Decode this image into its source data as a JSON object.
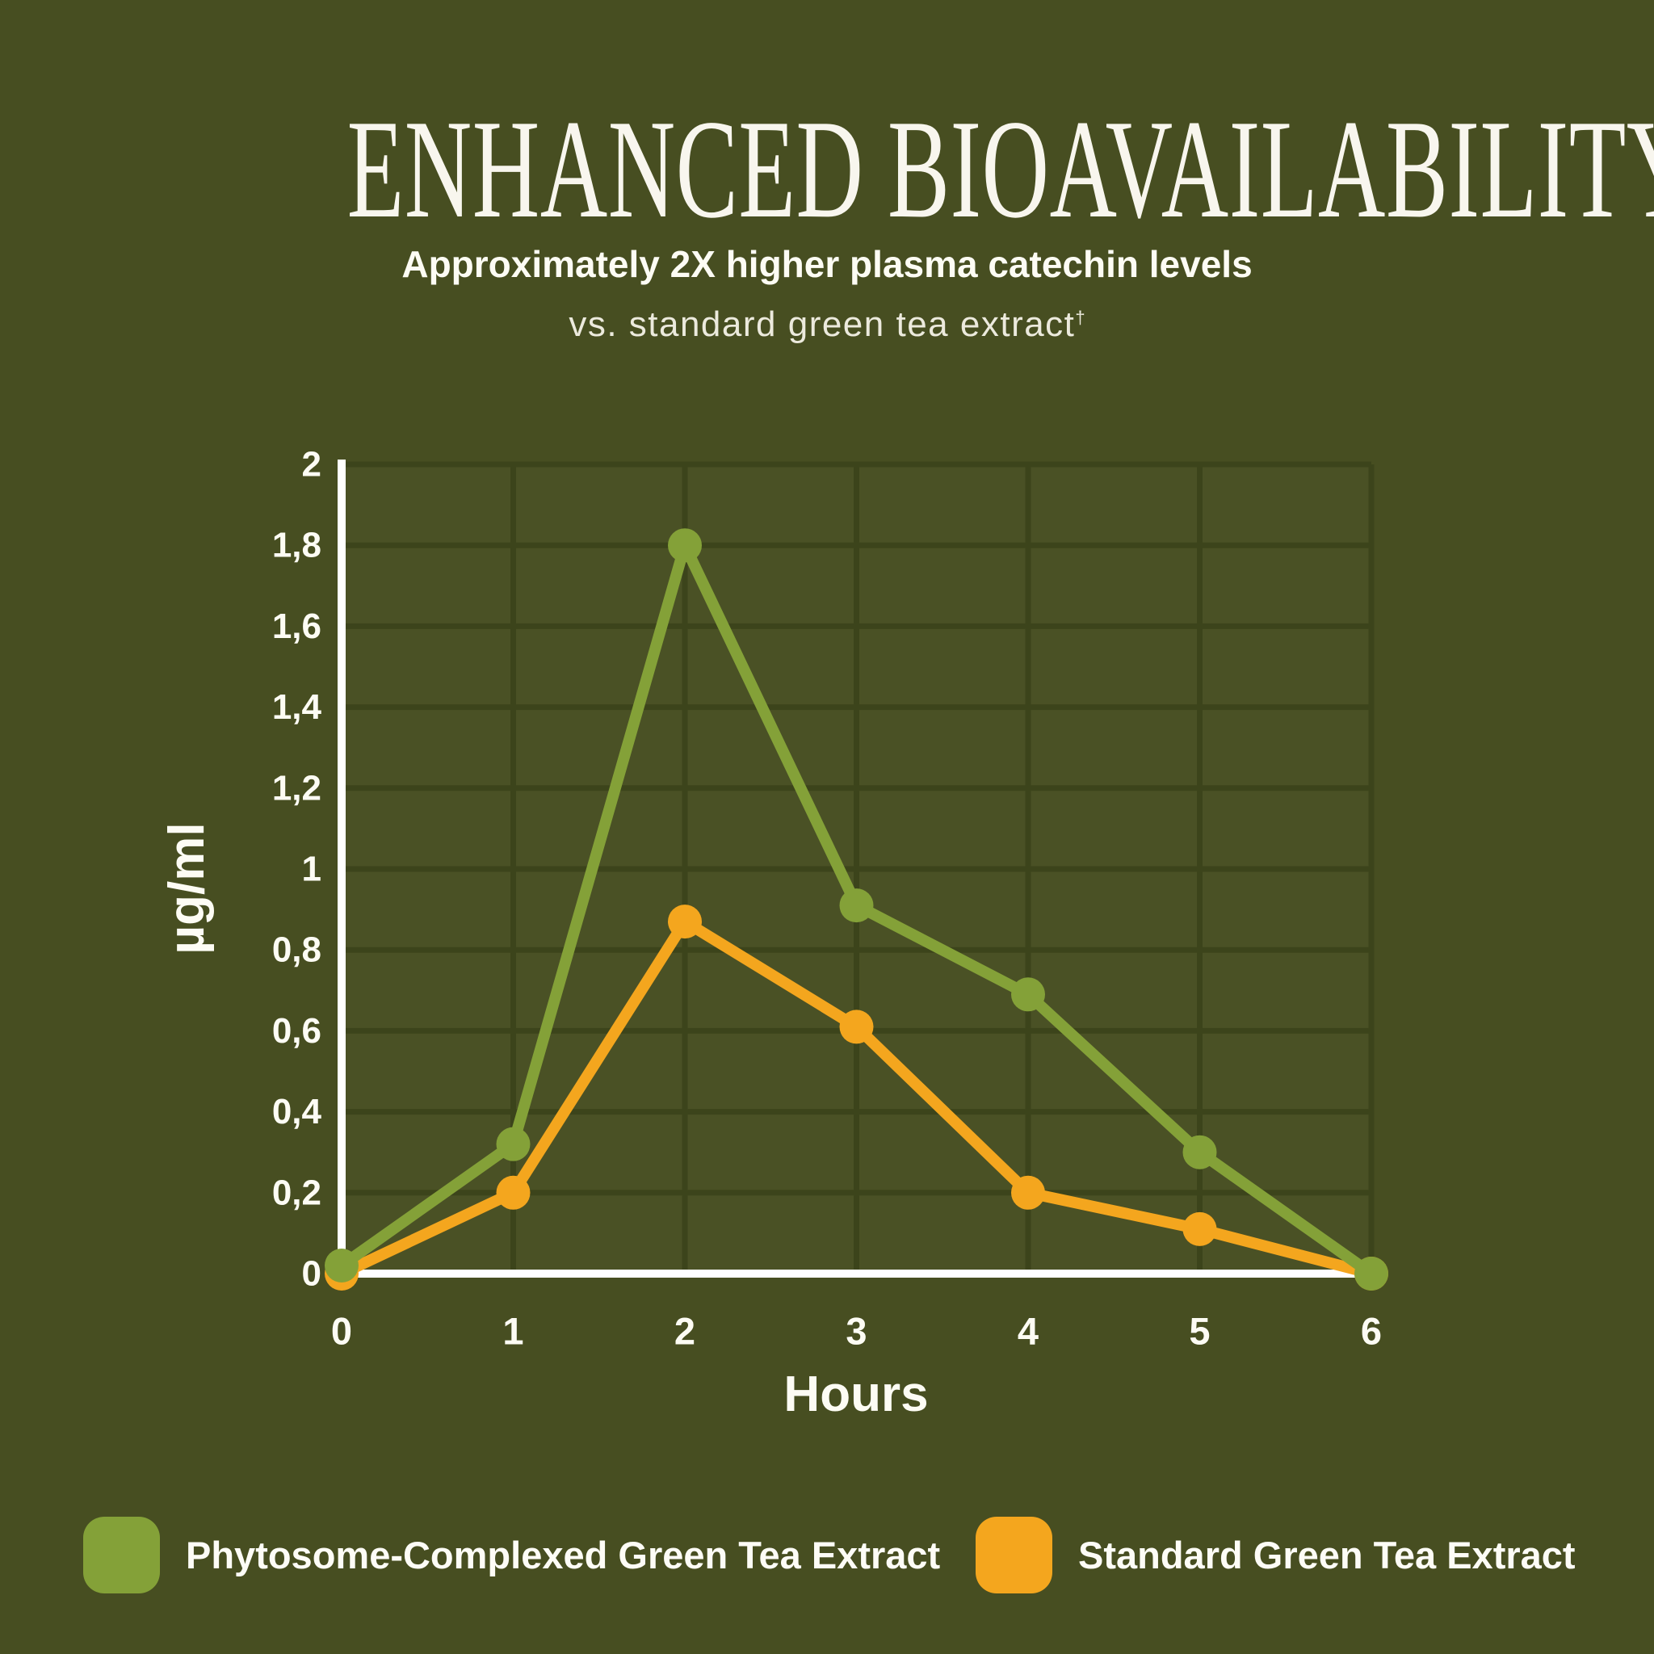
{
  "header": {
    "title": "ENHANCED BIOAVAILABILITY",
    "subtitle": "Approximately 2X higher plasma catechin levels",
    "note": "vs. standard green tea extract",
    "note_superscript": "†"
  },
  "chart_data": {
    "type": "line",
    "x": [
      0,
      1,
      2,
      3,
      4,
      5,
      6
    ],
    "xlabel": "Hours",
    "ylabel": "µg/ml",
    "xlim": [
      0,
      6
    ],
    "ylim": [
      0,
      2
    ],
    "ytick_step": 0.2,
    "decimal_separator": ",",
    "grid": true,
    "legend_position": "bottom",
    "series": [
      {
        "name": "Phytosome-Complexed Green Tea Extract",
        "color": "#84A138",
        "values": [
          0.02,
          0.32,
          1.8,
          0.91,
          0.69,
          0.3,
          0
        ]
      },
      {
        "name": "Standard Green Tea Extract",
        "color": "#F4A61E",
        "values": [
          0,
          0.2,
          0.87,
          0.61,
          0.2,
          0.11,
          0
        ]
      }
    ]
  },
  "legend": {
    "items": [
      {
        "label": "Phytosome-Complexed Green Tea Extract",
        "color": "#84A138"
      },
      {
        "label": "Standard Green Tea Extract",
        "color": "#F4A61E"
      }
    ]
  },
  "colors": {
    "background": "#474E21",
    "plot_tint": "rgba(255,255,255,0.018)",
    "grid": "#3C441B",
    "axis": "#FFFFFF",
    "text": "#FDFCF4"
  }
}
